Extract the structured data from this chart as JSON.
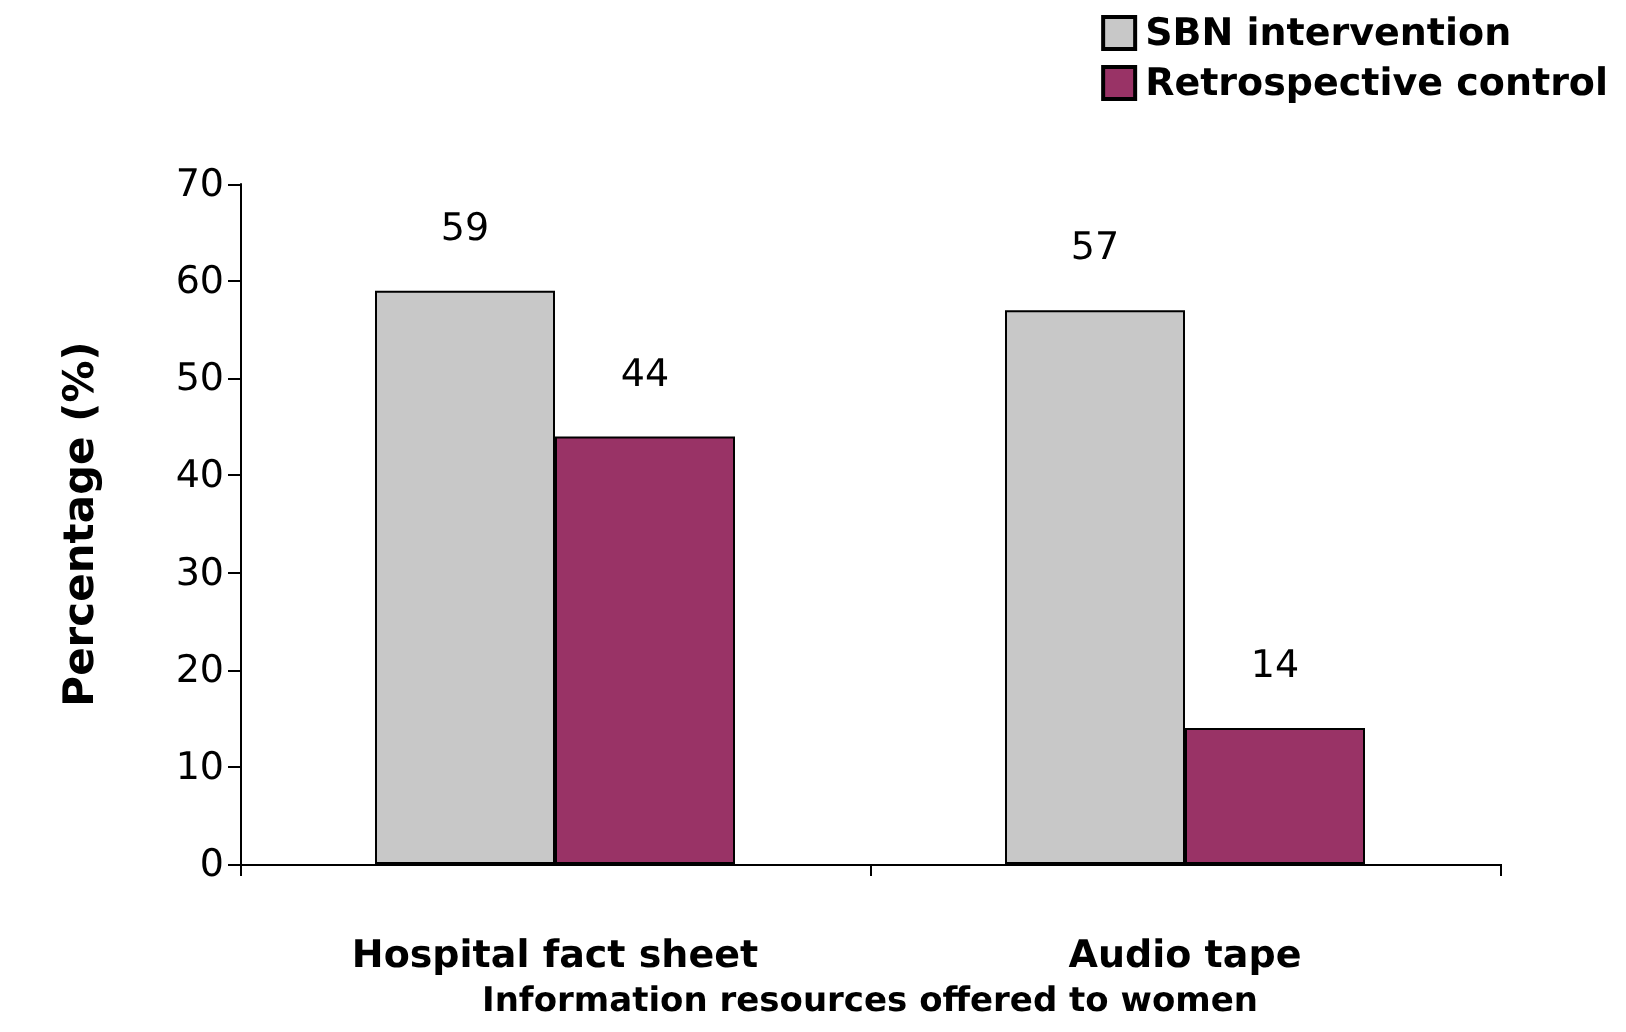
{
  "chart_data": {
    "type": "bar",
    "xlabel": "Information resources offered to women",
    "ylabel": "Percentage (%)",
    "categories": [
      "Hospital fact sheet",
      "Audio tape"
    ],
    "series": [
      {
        "name": "SBN intervention",
        "color": "#c8c8c8",
        "values": [
          59,
          57
        ]
      },
      {
        "name": "Retrospective control",
        "color": "#993366",
        "values": [
          44,
          14
        ]
      }
    ],
    "ylim": [
      0,
      70
    ],
    "yticks": [
      0,
      10,
      20,
      30,
      40,
      50,
      60,
      70
    ],
    "grid": false,
    "legend": "top right",
    "data_labels": true
  }
}
